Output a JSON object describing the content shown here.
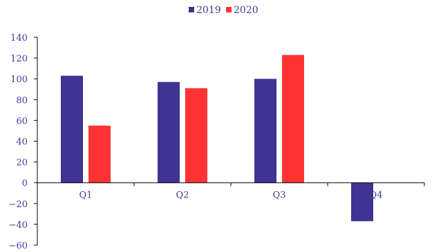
{
  "chart_data": {
    "type": "bar",
    "title": "",
    "xlabel": "",
    "ylabel": "",
    "categories": [
      "Q1",
      "Q2",
      "Q3",
      "Q4"
    ],
    "series": [
      {
        "name": "2019",
        "values": [
          103,
          97,
          100,
          -37
        ],
        "color": "#3f3393"
      },
      {
        "name": "2020",
        "values": [
          55,
          91,
          123,
          0
        ],
        "color": "#ff3333"
      }
    ],
    "ylim": [
      -60,
      140
    ],
    "yticks": [
      140,
      120,
      100,
      80,
      60,
      40,
      20,
      0,
      -20,
      -40,
      -60
    ],
    "ytick_labels": [
      "140",
      "120",
      "100",
      "80",
      "60",
      "40",
      "20",
      "0",
      "−20",
      "−40",
      "−60"
    ],
    "legend_position": "top-center",
    "grid": false
  }
}
